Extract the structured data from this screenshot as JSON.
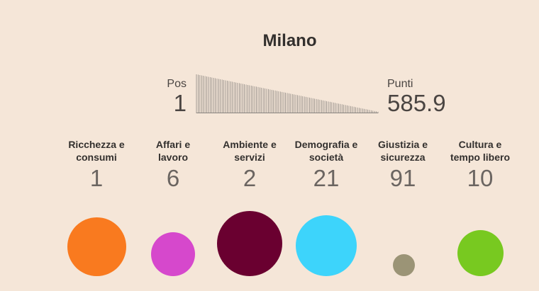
{
  "city": "Milano",
  "summary": {
    "pos_label": "Pos",
    "pos_value": "1",
    "points_label": "Punti",
    "points_value": "585.9"
  },
  "rank_chart": {
    "bar_count": 107,
    "top_level": 1.0,
    "bottom_level": 0.04,
    "color": "#8a8580"
  },
  "categories": [
    {
      "label_line1": "Ricchezza e",
      "label_line2": "consumi",
      "rank": "1",
      "color": "#f97a1f",
      "size": 0.86
    },
    {
      "label_line1": "Affari e",
      "label_line2": "lavoro",
      "rank": "6",
      "color": "#d648cc",
      "size": 0.65
    },
    {
      "label_line1": "Ambiente e",
      "label_line2": "servizi",
      "rank": "2",
      "color": "#6a0030",
      "size": 0.96
    },
    {
      "label_line1": "Demografia e",
      "label_line2": "società",
      "rank": "21",
      "color": "#3dd4fb",
      "size": 0.9
    },
    {
      "label_line1": "Giustizia e",
      "label_line2": "sicurezza",
      "rank": "91",
      "color": "#9b9476",
      "size": 0.32
    },
    {
      "label_line1": "Cultura e",
      "label_line2": "tempo libero",
      "rank": "10",
      "color": "#78c920",
      "size": 0.68
    }
  ]
}
